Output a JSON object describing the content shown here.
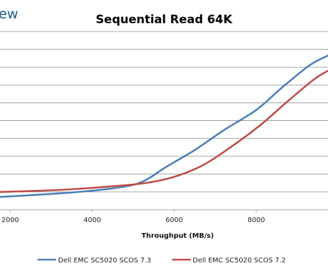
{
  "logo_text": "ew",
  "chart_data": {
    "type": "line",
    "title": "Sequential Read 64K",
    "xlabel": "Throughput (MB/s)",
    "ylabel": "",
    "xlim": [
      1750,
      9750
    ],
    "ylim": [
      0,
      11
    ],
    "x_ticks": [
      2000,
      4000,
      6000,
      8000
    ],
    "x_tick_labels": [
      "2000",
      "4000",
      "6000",
      "8000"
    ],
    "y_grid": [
      1,
      2,
      3,
      4,
      5,
      6,
      7,
      8,
      9,
      10
    ],
    "grid": true,
    "legend_position": "bottom",
    "series": [
      {
        "name": "Dell EMC SC5020 SCOS 7.3",
        "color": "#4a7ebb",
        "x": [
          1750,
          2500,
          3500,
          4500,
          5200,
          5800,
          6500,
          7200,
          8000,
          8600,
          9300,
          9750
        ],
        "y": [
          0.72,
          0.82,
          0.97,
          1.2,
          1.55,
          2.4,
          3.35,
          4.45,
          5.6,
          6.8,
          8.1,
          8.65
        ]
      },
      {
        "name": "Dell EMC SC5020 SCOS 7.2",
        "color": "#be4b48",
        "x": [
          1750,
          2500,
          3500,
          4500,
          5300,
          6000,
          6700,
          7400,
          8100,
          8800,
          9400,
          9750
        ],
        "y": [
          1.0,
          1.05,
          1.15,
          1.32,
          1.5,
          1.85,
          2.5,
          3.55,
          4.75,
          6.15,
          7.3,
          7.8
        ]
      }
    ]
  }
}
